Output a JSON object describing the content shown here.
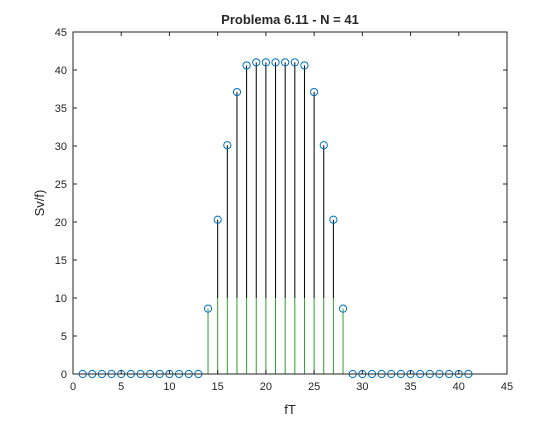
{
  "chart_data": {
    "type": "stem",
    "title": "Problema 6.11 - N = 41",
    "xlabel": "fT",
    "ylabel": "Sv/f)",
    "xlim": [
      0,
      45
    ],
    "ylim": [
      0,
      45
    ],
    "xticks": [
      0,
      5,
      10,
      15,
      20,
      25,
      30,
      35,
      40,
      45
    ],
    "yticks": [
      0,
      5,
      10,
      15,
      20,
      25,
      30,
      35,
      40,
      45
    ],
    "grid": false,
    "marker": "circle",
    "colors": {
      "marker": "#0072bd",
      "stem_lower": "#2ca02c",
      "stem_upper": "#000000",
      "axes": "#262626"
    },
    "x": [
      1,
      2,
      3,
      4,
      5,
      6,
      7,
      8,
      9,
      10,
      11,
      12,
      13,
      14,
      15,
      16,
      17,
      18,
      19,
      20,
      21,
      22,
      23,
      24,
      25,
      26,
      27,
      28,
      29,
      30,
      31,
      32,
      33,
      34,
      35,
      36,
      37,
      38,
      39,
      40,
      41
    ],
    "y": [
      0,
      0,
      0,
      0,
      0,
      0,
      0,
      0,
      0,
      0,
      0,
      0,
      0,
      8.6,
      20.3,
      30.1,
      37.1,
      40.6,
      41,
      41,
      41,
      41,
      41,
      40.6,
      37.1,
      30.1,
      20.3,
      8.6,
      0,
      0,
      0,
      0,
      0,
      0,
      0,
      0,
      0,
      0,
      0,
      0,
      0
    ]
  }
}
